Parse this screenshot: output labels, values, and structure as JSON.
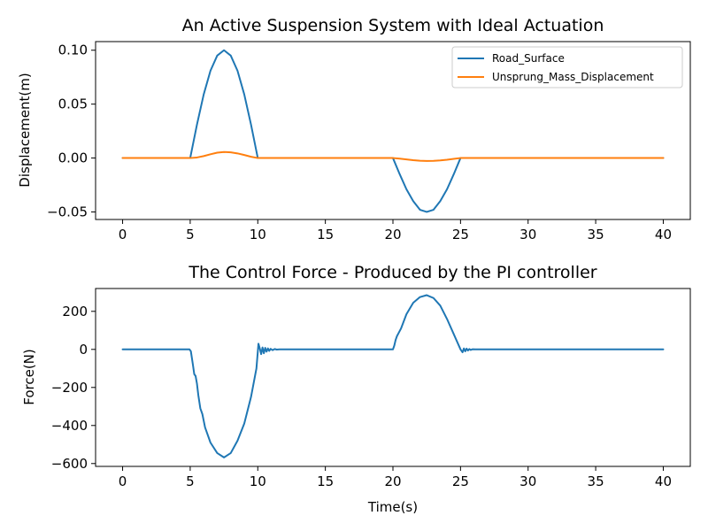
{
  "chart_data": [
    {
      "type": "line",
      "title": "An Active Suspension System with Ideal Actuation",
      "xlabel": "",
      "ylabel": "Displacement(m)",
      "xlim": [
        -2,
        42
      ],
      "ylim": [
        -0.057,
        0.108
      ],
      "xticks": [
        0,
        5,
        10,
        15,
        20,
        25,
        30,
        35,
        40
      ],
      "xtick_labels": [
        "0",
        "5",
        "10",
        "15",
        "20",
        "25",
        "30",
        "35",
        "40"
      ],
      "yticks": [
        -0.05,
        0,
        0.05,
        0.1
      ],
      "ytick_labels": [
        "−0.05",
        "0.00",
        "0.05",
        "0.10"
      ],
      "grid": false,
      "legend_position": "top-right",
      "series": [
        {
          "name": "Road_Surface",
          "color": "#1f77b4",
          "x": [
            0,
            5,
            5.5,
            6,
            6.5,
            7,
            7.5,
            8,
            8.5,
            9,
            9.5,
            10,
            20,
            20.5,
            21,
            21.5,
            22,
            22.5,
            23,
            23.5,
            24,
            24.5,
            25,
            40
          ],
          "y": [
            0,
            0,
            0.031,
            0.059,
            0.081,
            0.095,
            0.1,
            0.095,
            0.081,
            0.059,
            0.031,
            0,
            0,
            -0.015,
            -0.029,
            -0.04,
            -0.048,
            -0.05,
            -0.048,
            -0.04,
            -0.029,
            -0.015,
            0,
            0
          ]
        },
        {
          "name": "Unsprung_Mass_Displacement",
          "color": "#ff7f0e",
          "x": [
            0,
            5,
            5.5,
            6,
            6.5,
            7,
            7.5,
            8,
            8.5,
            9,
            9.5,
            10,
            20,
            20.5,
            21,
            21.5,
            22,
            22.5,
            23,
            23.5,
            24,
            24.5,
            25,
            40
          ],
          "y": [
            0,
            0,
            0.0005,
            0.0018,
            0.0035,
            0.005,
            0.0056,
            0.0053,
            0.0043,
            0.0028,
            0.0012,
            0,
            0,
            -0.0006,
            -0.0013,
            -0.002,
            -0.0025,
            -0.0027,
            -0.0026,
            -0.0022,
            -0.0016,
            -0.0008,
            0,
            0
          ]
        }
      ]
    },
    {
      "type": "line",
      "title": "The Control Force - Produced by the PI controller",
      "xlabel": "Time(s)",
      "ylabel": "Force(N)",
      "xlim": [
        -2,
        42
      ],
      "ylim": [
        -615,
        320
      ],
      "xticks": [
        0,
        5,
        10,
        15,
        20,
        25,
        30,
        35,
        40
      ],
      "xtick_labels": [
        "0",
        "5",
        "10",
        "15",
        "20",
        "25",
        "30",
        "35",
        "40"
      ],
      "yticks": [
        -600,
        -400,
        -200,
        0,
        200
      ],
      "ytick_labels": [
        "−600",
        "−400",
        "−200",
        "0",
        "200"
      ],
      "grid": false,
      "series": [
        {
          "color": "#1f77b4",
          "x": [
            0,
            4.95,
            5.05,
            5.2,
            5.3,
            5.4,
            5.5,
            5.6,
            5.75,
            5.9,
            6.1,
            6.5,
            7,
            7.5,
            8,
            8.5,
            9,
            9.5,
            9.9,
            10.05,
            10.15,
            10.25,
            10.35,
            10.45,
            10.55,
            10.65,
            10.75,
            10.85,
            10.95,
            11.1,
            11.25,
            11.4,
            11.6,
            11.8,
            12,
            20,
            20.1,
            20.2,
            20.3,
            20.45,
            20.6,
            21,
            21.5,
            22,
            22.5,
            23,
            23.5,
            24,
            24.5,
            25,
            25.15,
            25.25,
            25.35,
            25.45,
            25.55,
            25.65,
            25.75,
            25.9,
            26.1,
            40
          ],
          "y": [
            0,
            0,
            -10,
            -80,
            -130,
            -140,
            -180,
            -240,
            -310,
            -340,
            -410,
            -490,
            -545,
            -568,
            -545,
            -480,
            -390,
            -250,
            -100,
            30,
            5,
            -25,
            10,
            -20,
            8,
            -12,
            5,
            -8,
            3,
            -4,
            2,
            -1,
            0,
            0,
            0,
            0,
            20,
            50,
            70,
            90,
            110,
            185,
            245,
            275,
            285,
            270,
            230,
            160,
            80,
            0,
            -15,
            5,
            -10,
            4,
            -6,
            2,
            -3,
            1,
            0,
            0
          ]
        }
      ]
    }
  ]
}
